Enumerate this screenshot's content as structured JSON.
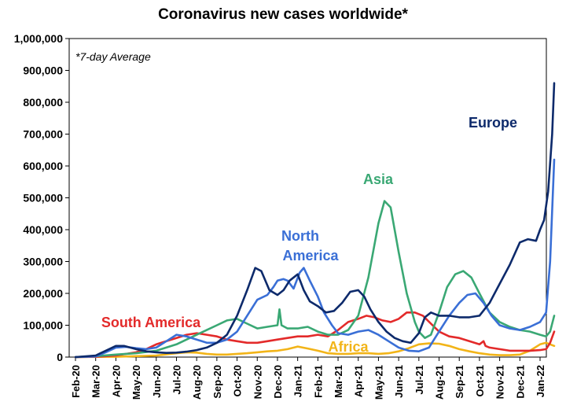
{
  "chart_data": {
    "type": "line",
    "title": "Coronavirus new cases worldwide*",
    "annotation": "*7-day Average",
    "xlabel": "",
    "ylabel": "",
    "ylim": [
      0,
      1000000
    ],
    "y_ticks": [
      0,
      100000,
      200000,
      300000,
      400000,
      500000,
      600000,
      700000,
      800000,
      900000,
      1000000
    ],
    "y_tick_labels": [
      "0",
      "100,000",
      "200,000",
      "300,000",
      "400,000",
      "500,000",
      "600,000",
      "700,000",
      "800,000",
      "900,000",
      "1,000,000"
    ],
    "x_tick_labels": [
      "Feb-20",
      "Mar-20",
      "Apr-20",
      "May-20",
      "Jun-20",
      "Jul-20",
      "Aug-20",
      "Sep-20",
      "Oct-20",
      "Nov-20",
      "Dec-20",
      "Jan-21",
      "Feb-21",
      "Mar-21",
      "Apr-21",
      "May-21",
      "Jun-21",
      "Jul-21",
      "Aug-21",
      "Sep-21",
      "Oct-21",
      "Nov-21",
      "Dec-21",
      "Jan-22"
    ],
    "grid": false,
    "legend": "inline labels",
    "x_unit": "months since Feb-20",
    "series": [
      {
        "name": "Europe",
        "color": "#0d2a6b",
        "points": [
          [
            0,
            0
          ],
          [
            1,
            5000
          ],
          [
            1.5,
            20000
          ],
          [
            2,
            35000
          ],
          [
            2.4,
            35000
          ],
          [
            3,
            25000
          ],
          [
            3.5,
            18000
          ],
          [
            4,
            15000
          ],
          [
            4.5,
            13000
          ],
          [
            5,
            14000
          ],
          [
            5.5,
            17000
          ],
          [
            6,
            22000
          ],
          [
            6.5,
            30000
          ],
          [
            7,
            45000
          ],
          [
            7.5,
            70000
          ],
          [
            8,
            130000
          ],
          [
            8.5,
            210000
          ],
          [
            8.9,
            280000
          ],
          [
            9.2,
            270000
          ],
          [
            9.6,
            210000
          ],
          [
            10,
            195000
          ],
          [
            10.3,
            210000
          ],
          [
            10.6,
            240000
          ],
          [
            11,
            260000
          ],
          [
            11.3,
            210000
          ],
          [
            11.6,
            175000
          ],
          [
            12,
            160000
          ],
          [
            12.4,
            140000
          ],
          [
            12.8,
            145000
          ],
          [
            13.2,
            170000
          ],
          [
            13.6,
            205000
          ],
          [
            14,
            210000
          ],
          [
            14.3,
            190000
          ],
          [
            14.6,
            150000
          ],
          [
            15,
            110000
          ],
          [
            15.4,
            80000
          ],
          [
            15.8,
            60000
          ],
          [
            16.2,
            50000
          ],
          [
            16.6,
            45000
          ],
          [
            17,
            75000
          ],
          [
            17.3,
            125000
          ],
          [
            17.6,
            140000
          ],
          [
            18,
            130000
          ],
          [
            18.5,
            130000
          ],
          [
            19,
            125000
          ],
          [
            19.5,
            125000
          ],
          [
            20,
            130000
          ],
          [
            20.5,
            170000
          ],
          [
            21,
            230000
          ],
          [
            21.5,
            290000
          ],
          [
            22,
            360000
          ],
          [
            22.4,
            370000
          ],
          [
            22.8,
            365000
          ],
          [
            23,
            400000
          ],
          [
            23.2,
            430000
          ],
          [
            23.4,
            520000
          ],
          [
            23.6,
            700000
          ],
          [
            23.7,
            860000
          ]
        ]
      },
      {
        "name": "North America",
        "color": "#3a6fd6",
        "points": [
          [
            0,
            0
          ],
          [
            1,
            2000
          ],
          [
            1.5,
            15000
          ],
          [
            2,
            30000
          ],
          [
            2.5,
            32000
          ],
          [
            3,
            28000
          ],
          [
            3.5,
            25000
          ],
          [
            4,
            30000
          ],
          [
            4.5,
            50000
          ],
          [
            5,
            70000
          ],
          [
            5.5,
            65000
          ],
          [
            6,
            55000
          ],
          [
            6.5,
            45000
          ],
          [
            7,
            45000
          ],
          [
            7.5,
            55000
          ],
          [
            8,
            80000
          ],
          [
            8.5,
            130000
          ],
          [
            9,
            180000
          ],
          [
            9.5,
            195000
          ],
          [
            9.8,
            220000
          ],
          [
            10,
            240000
          ],
          [
            10.3,
            245000
          ],
          [
            10.5,
            240000
          ],
          [
            10.8,
            215000
          ],
          [
            11.1,
            265000
          ],
          [
            11.3,
            280000
          ],
          [
            11.6,
            240000
          ],
          [
            12,
            190000
          ],
          [
            12.3,
            140000
          ],
          [
            12.7,
            100000
          ],
          [
            13,
            75000
          ],
          [
            13.5,
            70000
          ],
          [
            14,
            80000
          ],
          [
            14.5,
            85000
          ],
          [
            15,
            70000
          ],
          [
            15.5,
            50000
          ],
          [
            16,
            30000
          ],
          [
            16.5,
            20000
          ],
          [
            17,
            18000
          ],
          [
            17.5,
            30000
          ],
          [
            18,
            80000
          ],
          [
            18.5,
            130000
          ],
          [
            19,
            170000
          ],
          [
            19.4,
            195000
          ],
          [
            19.8,
            200000
          ],
          [
            20.2,
            170000
          ],
          [
            20.6,
            130000
          ],
          [
            21,
            100000
          ],
          [
            21.5,
            90000
          ],
          [
            22,
            85000
          ],
          [
            22.5,
            95000
          ],
          [
            23,
            110000
          ],
          [
            23.3,
            140000
          ],
          [
            23.5,
            300000
          ],
          [
            23.7,
            620000
          ]
        ]
      },
      {
        "name": "Asia",
        "color": "#3aa874",
        "points": [
          [
            0,
            0
          ],
          [
            1,
            3000
          ],
          [
            2,
            8000
          ],
          [
            3,
            12000
          ],
          [
            4,
            20000
          ],
          [
            5,
            40000
          ],
          [
            6,
            70000
          ],
          [
            6.5,
            85000
          ],
          [
            7,
            100000
          ],
          [
            7.5,
            115000
          ],
          [
            8,
            120000
          ],
          [
            8.5,
            105000
          ],
          [
            9,
            90000
          ],
          [
            9.5,
            95000
          ],
          [
            10,
            100000
          ],
          [
            10.1,
            150000
          ],
          [
            10.2,
            100000
          ],
          [
            10.5,
            90000
          ],
          [
            11,
            90000
          ],
          [
            11.5,
            95000
          ],
          [
            12,
            80000
          ],
          [
            12.5,
            70000
          ],
          [
            13,
            70000
          ],
          [
            13.5,
            85000
          ],
          [
            14,
            130000
          ],
          [
            14.5,
            250000
          ],
          [
            15,
            420000
          ],
          [
            15.3,
            490000
          ],
          [
            15.6,
            470000
          ],
          [
            16,
            330000
          ],
          [
            16.4,
            200000
          ],
          [
            16.8,
            110000
          ],
          [
            17,
            80000
          ],
          [
            17.3,
            60000
          ],
          [
            17.6,
            70000
          ],
          [
            18,
            140000
          ],
          [
            18.4,
            220000
          ],
          [
            18.8,
            260000
          ],
          [
            19.2,
            270000
          ],
          [
            19.6,
            250000
          ],
          [
            20,
            200000
          ],
          [
            20.5,
            140000
          ],
          [
            21,
            110000
          ],
          [
            21.5,
            95000
          ],
          [
            22,
            85000
          ],
          [
            22.5,
            80000
          ],
          [
            23,
            70000
          ],
          [
            23.3,
            65000
          ],
          [
            23.5,
            80000
          ],
          [
            23.7,
            130000
          ]
        ]
      },
      {
        "name": "South America",
        "color": "#e32a2a",
        "points": [
          [
            0,
            0
          ],
          [
            1,
            1000
          ],
          [
            2,
            5000
          ],
          [
            3,
            15000
          ],
          [
            3.5,
            25000
          ],
          [
            4,
            40000
          ],
          [
            4.5,
            50000
          ],
          [
            5,
            60000
          ],
          [
            5.5,
            70000
          ],
          [
            6,
            75000
          ],
          [
            6.5,
            70000
          ],
          [
            7,
            65000
          ],
          [
            7.5,
            55000
          ],
          [
            8,
            50000
          ],
          [
            8.5,
            45000
          ],
          [
            9,
            45000
          ],
          [
            9.5,
            50000
          ],
          [
            10,
            55000
          ],
          [
            10.5,
            60000
          ],
          [
            11,
            65000
          ],
          [
            11.5,
            65000
          ],
          [
            12,
            70000
          ],
          [
            12.5,
            65000
          ],
          [
            13,
            85000
          ],
          [
            13.5,
            110000
          ],
          [
            14,
            120000
          ],
          [
            14.4,
            130000
          ],
          [
            14.8,
            125000
          ],
          [
            15.2,
            115000
          ],
          [
            15.6,
            110000
          ],
          [
            16,
            120000
          ],
          [
            16.4,
            140000
          ],
          [
            16.8,
            140000
          ],
          [
            17.2,
            130000
          ],
          [
            17.6,
            105000
          ],
          [
            18,
            80000
          ],
          [
            18.5,
            65000
          ],
          [
            19,
            60000
          ],
          [
            19.5,
            50000
          ],
          [
            20,
            40000
          ],
          [
            20.2,
            50000
          ],
          [
            20.3,
            35000
          ],
          [
            20.5,
            30000
          ],
          [
            21,
            25000
          ],
          [
            21.5,
            20000
          ],
          [
            22,
            20000
          ],
          [
            22.5,
            20000
          ],
          [
            23,
            22000
          ],
          [
            23.3,
            25000
          ],
          [
            23.5,
            45000
          ],
          [
            23.7,
            80000
          ]
        ]
      },
      {
        "name": "Africa",
        "color": "#f2b418",
        "points": [
          [
            0,
            0
          ],
          [
            2,
            1000
          ],
          [
            3,
            3000
          ],
          [
            4,
            5000
          ],
          [
            5,
            12000
          ],
          [
            5.5,
            15000
          ],
          [
            6,
            14000
          ],
          [
            6.5,
            10000
          ],
          [
            7,
            8000
          ],
          [
            7.5,
            8000
          ],
          [
            8,
            10000
          ],
          [
            8.5,
            12000
          ],
          [
            9,
            15000
          ],
          [
            9.5,
            18000
          ],
          [
            10,
            20000
          ],
          [
            10.5,
            25000
          ],
          [
            11,
            33000
          ],
          [
            11.5,
            27000
          ],
          [
            12,
            20000
          ],
          [
            12.5,
            12000
          ],
          [
            13,
            10000
          ],
          [
            13.5,
            10000
          ],
          [
            14,
            12000
          ],
          [
            14.5,
            12000
          ],
          [
            15,
            10000
          ],
          [
            15.5,
            12000
          ],
          [
            16,
            18000
          ],
          [
            16.5,
            28000
          ],
          [
            17,
            40000
          ],
          [
            17.5,
            43000
          ],
          [
            18,
            42000
          ],
          [
            18.5,
            35000
          ],
          [
            19,
            25000
          ],
          [
            19.5,
            18000
          ],
          [
            20,
            12000
          ],
          [
            20.5,
            8000
          ],
          [
            21,
            6000
          ],
          [
            21.5,
            6000
          ],
          [
            22,
            8000
          ],
          [
            22.5,
            20000
          ],
          [
            23,
            40000
          ],
          [
            23.3,
            45000
          ],
          [
            23.5,
            40000
          ],
          [
            23.7,
            35000
          ]
        ]
      }
    ],
    "inline_labels": [
      {
        "text": "Europe",
        "color": "#0d2a6b"
      },
      {
        "text": "North",
        "color": "#3a6fd6"
      },
      {
        "text": "America",
        "color": "#3a6fd6"
      },
      {
        "text": "Asia",
        "color": "#3aa874"
      },
      {
        "text": "South America",
        "color": "#e32a2a"
      },
      {
        "text": "Africa",
        "color": "#f2b418"
      }
    ]
  }
}
